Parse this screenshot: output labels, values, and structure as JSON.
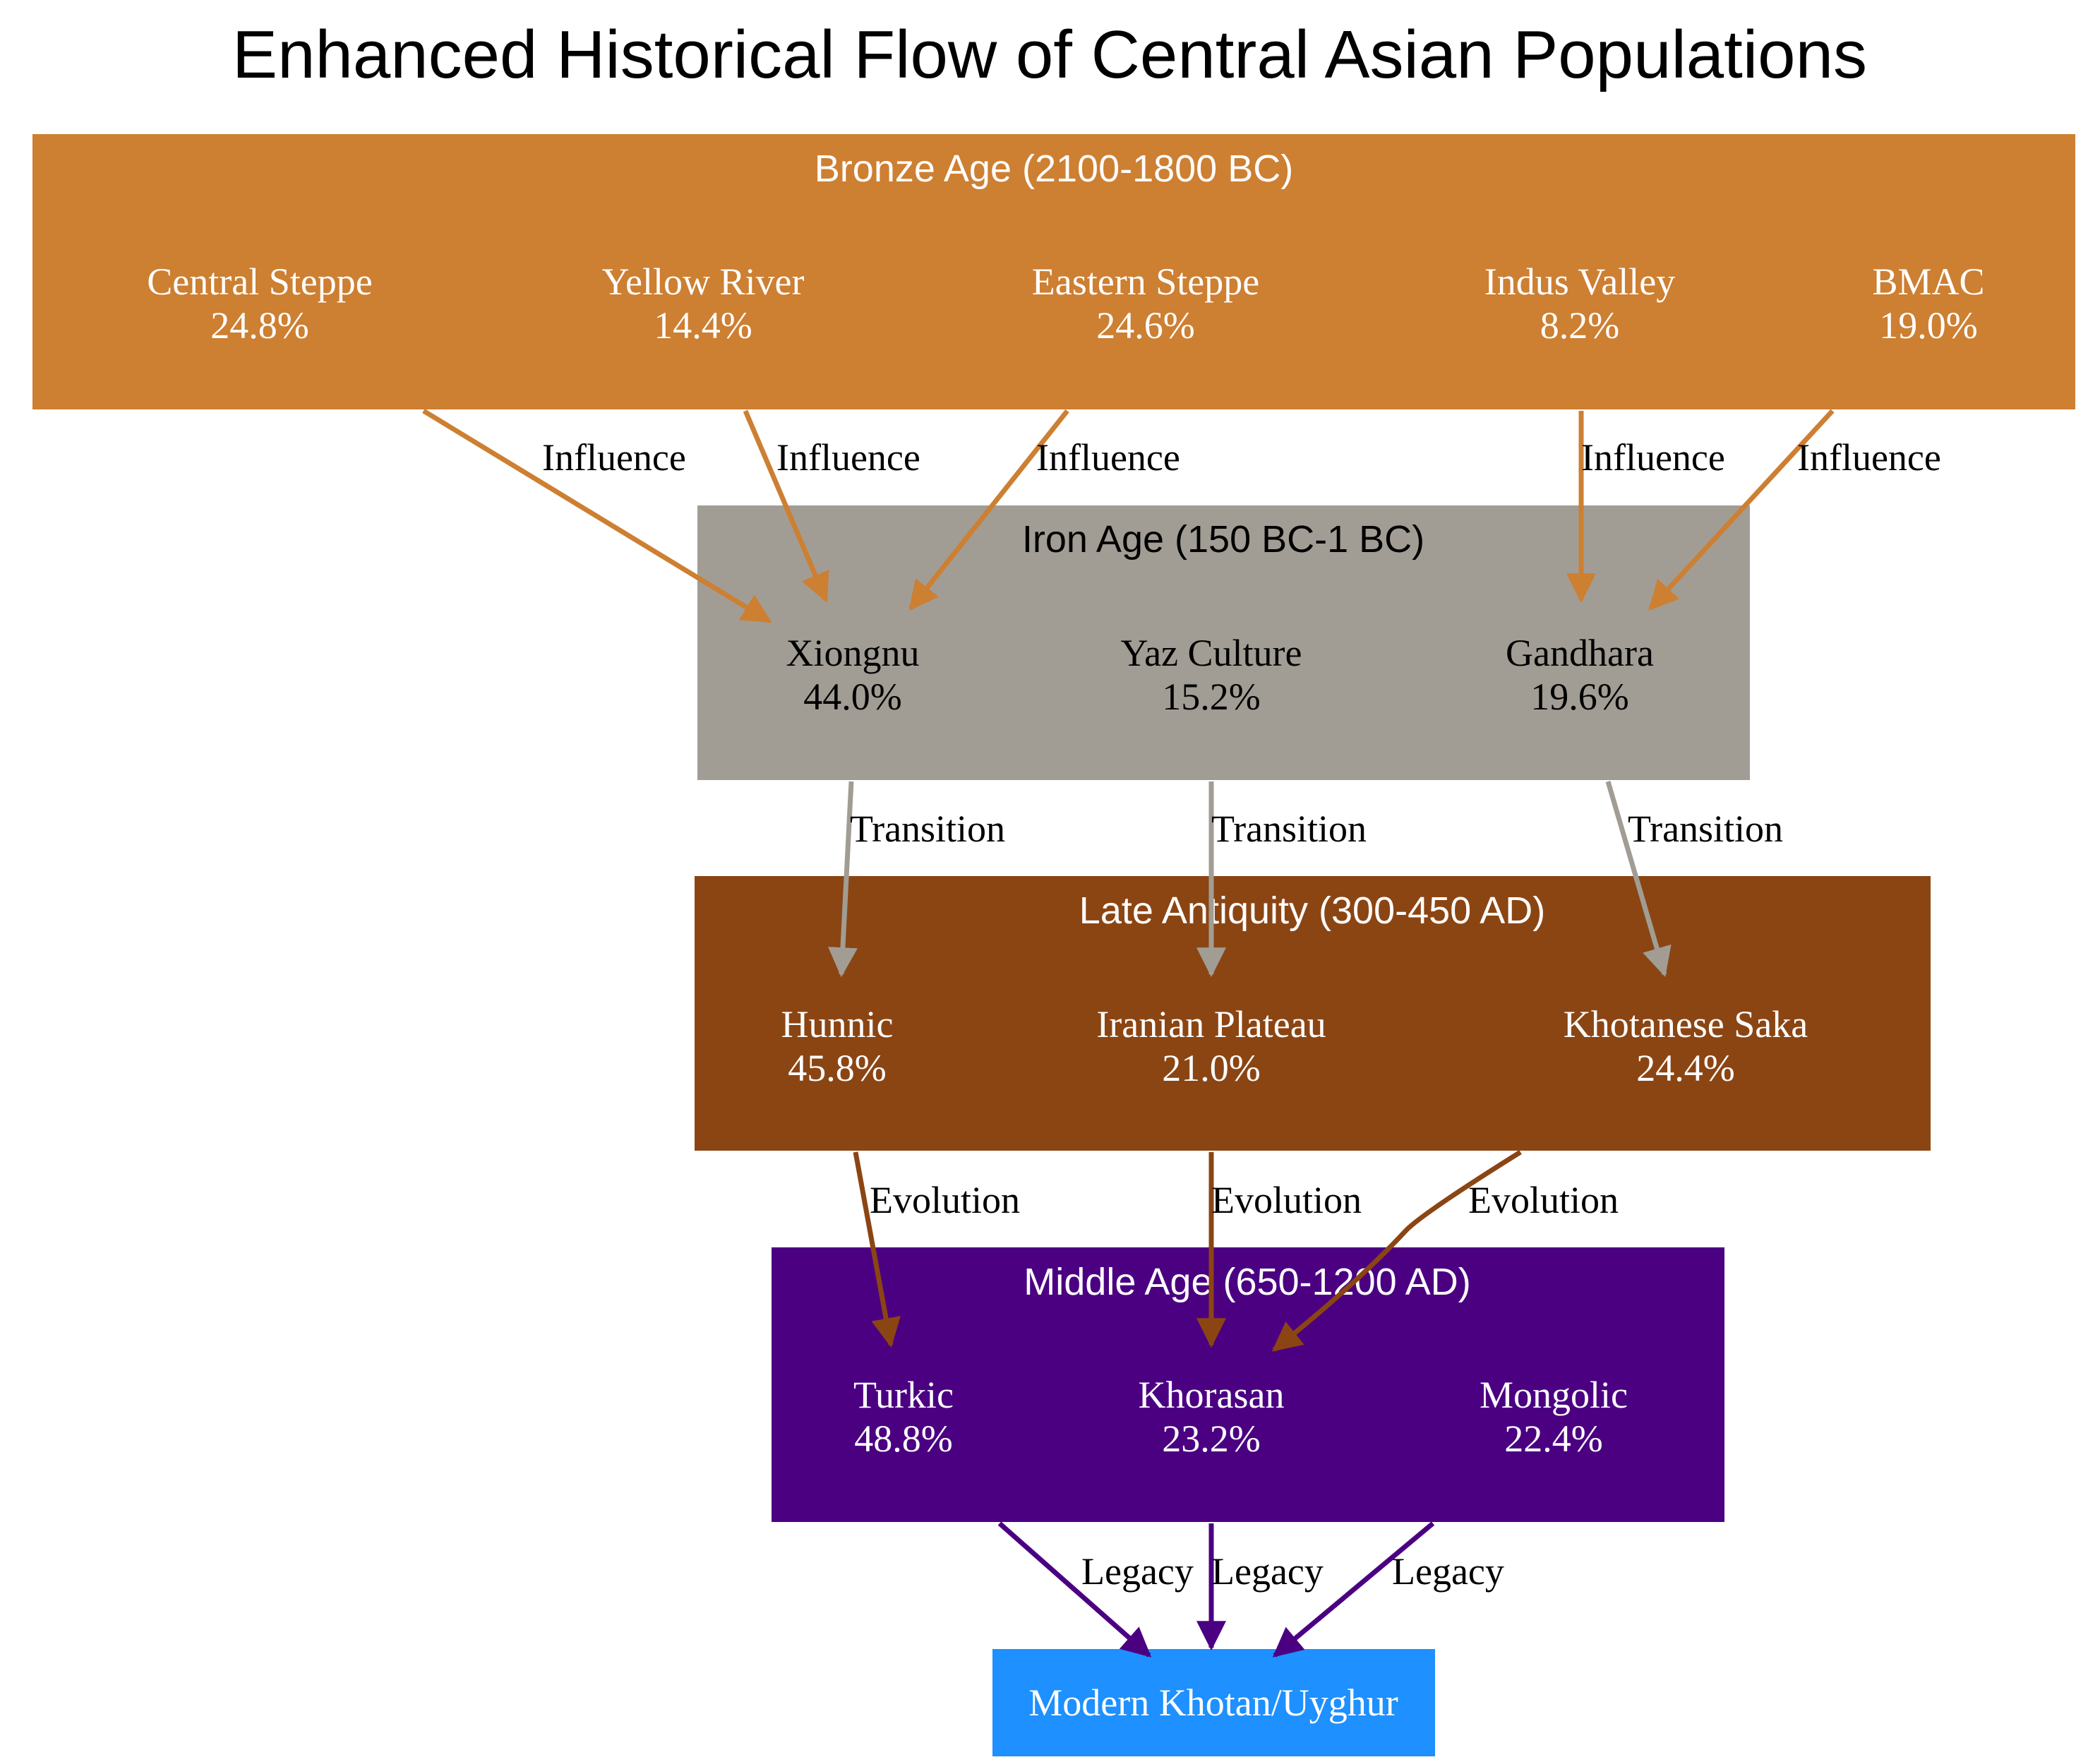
{
  "title": "Enhanced Historical Flow of Central Asian Populations",
  "colors": {
    "bronze": "#cd7f32",
    "iron": "#a19d94",
    "late": "#8b4513",
    "middle": "#4b0082",
    "modern": "#1e90ff"
  },
  "clusters": {
    "bronze": {
      "label": "Bronze Age (2100-1800 BC)",
      "nodes": [
        {
          "name": "Central Steppe",
          "value": "24.8%"
        },
        {
          "name": "Yellow River",
          "value": "14.4%"
        },
        {
          "name": "Eastern Steppe",
          "value": "24.6%"
        },
        {
          "name": "Indus Valley",
          "value": "8.2%"
        },
        {
          "name": "BMAC",
          "value": "19.0%"
        }
      ]
    },
    "iron": {
      "label": "Iron Age (150 BC-1 BC)",
      "nodes": [
        {
          "name": "Xiongnu",
          "value": "44.0%"
        },
        {
          "name": "Yaz Culture",
          "value": "15.2%"
        },
        {
          "name": "Gandhara",
          "value": "19.6%"
        }
      ]
    },
    "late": {
      "label": "Late Antiquity (300-450 AD)",
      "nodes": [
        {
          "name": "Hunnic",
          "value": "45.8%"
        },
        {
          "name": "Iranian Plateau",
          "value": "21.0%"
        },
        {
          "name": "Khotanese Saka",
          "value": "24.4%"
        }
      ]
    },
    "middle": {
      "label": "Middle Age (650-1200 AD)",
      "nodes": [
        {
          "name": "Turkic",
          "value": "48.8%"
        },
        {
          "name": "Khorasan",
          "value": "23.2%"
        },
        {
          "name": "Mongolic",
          "value": "22.4%"
        }
      ]
    }
  },
  "modern": {
    "label": "Modern Khotan/Uyghur"
  },
  "edge_labels": {
    "influence": "Influence",
    "transition": "Transition",
    "evolution": "Evolution",
    "legacy": "Legacy"
  }
}
